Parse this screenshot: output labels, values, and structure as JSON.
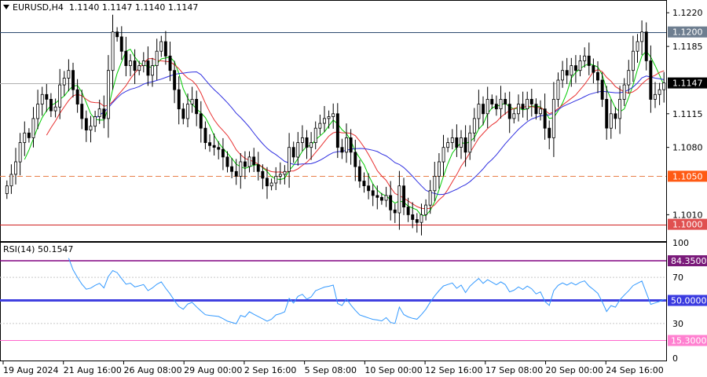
{
  "header": {
    "symbol": "EURUSD,H4",
    "ohlc": "1.1140 1.1147 1.1140 1.1147"
  },
  "rsi_header": "RSI(14) 50.1547",
  "colors": {
    "bull_candle": "#ffffff",
    "bear_candle": "#000000",
    "ma_fast": "#00cc00",
    "ma_mid": "#e83030",
    "ma_slow": "#3030e0",
    "resistance_line": "#2c4a6e",
    "support_line": "#d02020",
    "dashed_line": "#e8804a",
    "rsi_line": "#3399ff",
    "rsi_high_level": "#800080",
    "rsi_mid_level": "#4040e0",
    "rsi_low_level": "#ff66cc"
  },
  "chart_data": [
    {
      "type": "candlestick",
      "symbol": "EURUSD",
      "timeframe": "H4",
      "ylim": [
        1.0985,
        1.123
      ],
      "price_ticks": [
        "1.1220",
        "1.1185",
        "1.1115",
        "1.1080",
        "1.1010"
      ],
      "x_labels": [
        "19 Aug 2024",
        "21 Aug 16:00",
        "26 Aug 08:00",
        "29 Aug 00:00",
        "2 Sep 16:00",
        "5 Sep 08:00",
        "10 Sep 00:00",
        "12 Sep 16:00",
        "17 Sep 08:00",
        "20 Sep 00:00",
        "24 Sep 16:00"
      ],
      "levels": [
        {
          "name": "resistance",
          "value": "1.1200",
          "style": "solid"
        },
        {
          "name": "current",
          "value": "1.1147",
          "style": "solid"
        },
        {
          "name": "dashed",
          "value": "1.1050",
          "style": "dashed"
        },
        {
          "name": "support",
          "value": "1.1000",
          "style": "solid"
        }
      ],
      "close": [
        1.104,
        1.1052,
        1.1065,
        1.1085,
        1.1095,
        1.109,
        1.111,
        1.1125,
        1.1135,
        1.113,
        1.1118,
        1.1122,
        1.1145,
        1.1152,
        1.116,
        1.114,
        1.1125,
        1.111,
        1.1098,
        1.1102,
        1.1112,
        1.112,
        1.111,
        1.116,
        1.12,
        1.1195,
        1.118,
        1.1165,
        1.117,
        1.116,
        1.1165,
        1.117,
        1.1155,
        1.1165,
        1.118,
        1.119,
        1.1175,
        1.116,
        1.114,
        1.112,
        1.111,
        1.1125,
        1.113,
        1.1115,
        1.11,
        1.1085,
        1.1082,
        1.108,
        1.1078,
        1.107,
        1.106,
        1.1055,
        1.105,
        1.1065,
        1.106,
        1.107,
        1.1062,
        1.1055,
        1.1048,
        1.104,
        1.1043,
        1.105,
        1.1052,
        1.1055,
        1.108,
        1.107,
        1.1085,
        1.109,
        1.108,
        1.1085,
        1.11,
        1.1105,
        1.111,
        1.1112,
        1.1115,
        1.108,
        1.1075,
        1.109,
        1.1075,
        1.106,
        1.1045,
        1.104,
        1.1035,
        1.103,
        1.1028,
        1.1025,
        1.103,
        1.1015,
        1.1012,
        1.104,
        1.1018,
        1.101,
        1.1005,
        1.1002,
        1.101,
        1.102,
        1.1035,
        1.105,
        1.1065,
        1.108,
        1.1085,
        1.109,
        1.108,
        1.109,
        1.1075,
        1.1095,
        1.111,
        1.1125,
        1.1115,
        1.113,
        1.1125,
        1.112,
        1.113,
        1.1125,
        1.111,
        1.1115,
        1.1125,
        1.112,
        1.113,
        1.1125,
        1.1115,
        1.112,
        1.11,
        1.109,
        1.113,
        1.115,
        1.116,
        1.1155,
        1.1165,
        1.116,
        1.117,
        1.1175,
        1.1165,
        1.1158,
        1.115,
        1.113,
        1.11,
        1.1115,
        1.111,
        1.113,
        1.1145,
        1.116,
        1.118,
        1.119,
        1.12,
        1.117,
        1.113,
        1.1135,
        1.114,
        1.1147
      ],
      "ma": [
        {
          "period": 5,
          "color": "green"
        },
        {
          "period": 10,
          "color": "red"
        },
        {
          "period": 21,
          "color": "blue"
        }
      ]
    },
    {
      "type": "line",
      "name": "RSI(14)",
      "value": "50.1547",
      "ylim": [
        0,
        100
      ],
      "ticks": [
        "100",
        "70",
        "50",
        "30",
        "0"
      ],
      "levels": [
        "84.3500",
        "50.0000",
        "15.3000"
      ],
      "source": "close",
      "period": 14
    }
  ]
}
